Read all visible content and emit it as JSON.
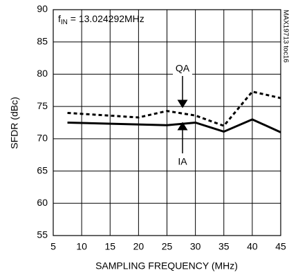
{
  "chart_data": {
    "type": "line",
    "xlabel": "SAMPLING FREQUENCY (MHz)",
    "ylabel": "SFDR (dBc)",
    "note": {
      "f": "f",
      "sub": "IN",
      "rest": " = 13.024292MHz"
    },
    "side_label": "MAX19713 toc16",
    "xlim": [
      5,
      45
    ],
    "xticks": [
      5,
      10,
      15,
      20,
      25,
      30,
      35,
      40,
      45
    ],
    "ylim": [
      55,
      90
    ],
    "yticks": [
      55,
      60,
      65,
      70,
      75,
      80,
      85,
      90
    ],
    "grid": true,
    "series": [
      {
        "name": "QA",
        "color": "#000000",
        "line_style": "dashed",
        "x": [
          7.5,
          20,
          25,
          30,
          35,
          40,
          45
        ],
        "values": [
          74,
          73.3,
          74.3,
          73.6,
          72,
          77.3,
          76.3
        ]
      },
      {
        "name": "IA",
        "color": "#000000",
        "line_style": "solid",
        "x": [
          7.5,
          25,
          30,
          35,
          40,
          45
        ],
        "values": [
          72.5,
          72.1,
          72.5,
          71.1,
          73,
          71
        ]
      }
    ]
  }
}
